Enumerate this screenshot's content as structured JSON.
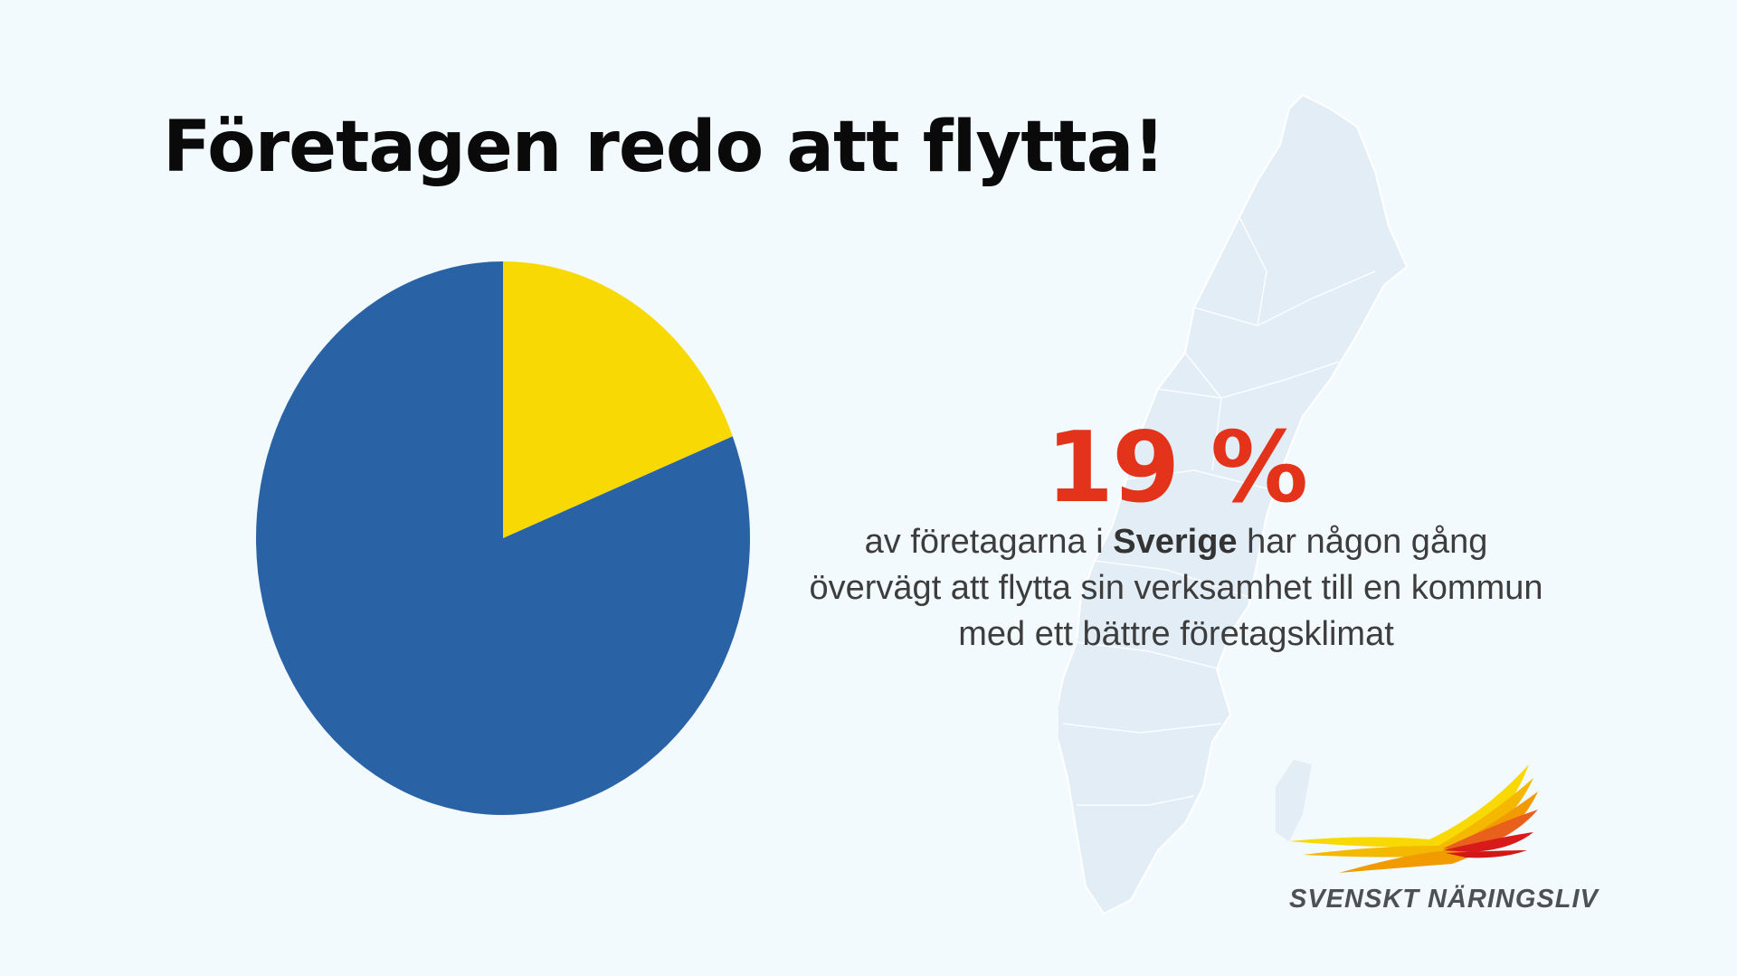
{
  "title": "Företagen redo att flytta!",
  "chart_data": {
    "type": "pie",
    "values": [
      19,
      81
    ],
    "colors": [
      "#f9d904",
      "#2963a5"
    ],
    "start": "12 o'clock, clockwise"
  },
  "stat": {
    "value": "19 %",
    "color": "#e3331b",
    "line1_pre": "av företagarna i ",
    "line1_bold": "Sverige",
    "line1_post": " har någon gång",
    "line2": "övervägt att flytta sin verksamhet till en kommun",
    "line3": "med ett bättre företagsklimat"
  },
  "background_map": "sweden-map",
  "logo": {
    "text": "SVENSKT NÄRINGSLIV"
  }
}
